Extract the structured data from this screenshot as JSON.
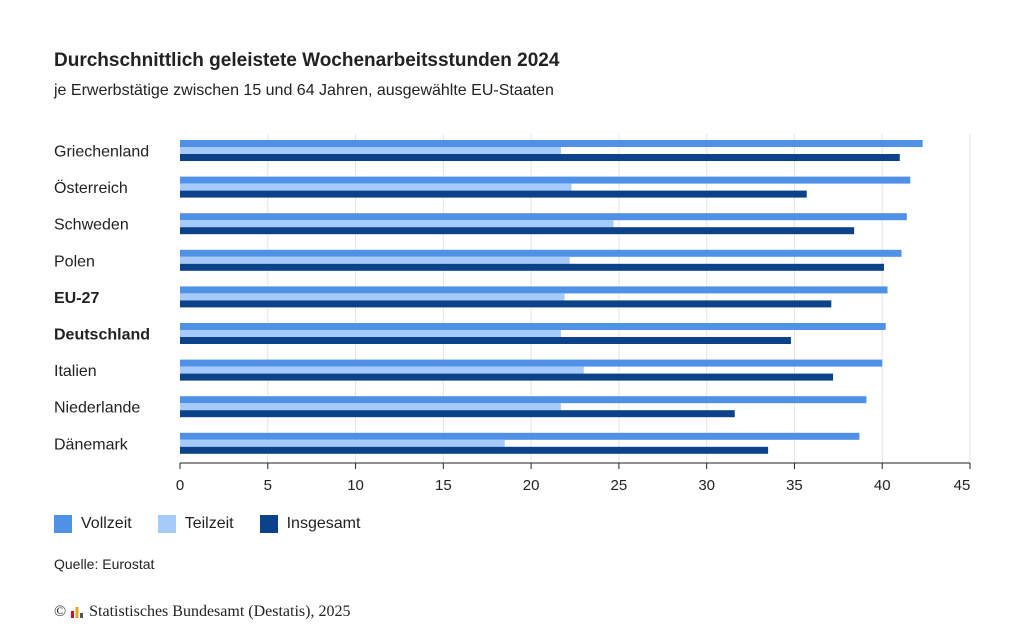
{
  "header": {
    "title": "Durchschnittlich geleistete Wochenarbeitsstunden 2024",
    "subtitle": "je Erwerbstätige zwischen 15 und 64 Jahren, ausgewählte EU-Staaten"
  },
  "chart_data": {
    "type": "bar",
    "orientation": "horizontal",
    "title": "Durchschnittlich geleistete Wochenarbeitsstunden 2024",
    "subtitle": "je Erwerbstätige zwischen 15 und 64 Jahren, ausgewählte EU-Staaten",
    "categories": [
      "Griechenland",
      "Österreich",
      "Schweden",
      "Polen",
      "EU-27",
      "Deutschland",
      "Italien",
      "Niederlande",
      "Dänemark"
    ],
    "bold_categories": [
      "EU-27",
      "Deutschland"
    ],
    "series": [
      {
        "name": "Vollzeit",
        "color": "#4f91e6",
        "values": [
          42.3,
          41.6,
          41.4,
          41.1,
          40.3,
          40.2,
          40.0,
          39.1,
          38.7
        ]
      },
      {
        "name": "Teilzeit",
        "color": "#a6cbfa",
        "values": [
          21.7,
          22.3,
          24.7,
          22.2,
          21.9,
          21.7,
          23.0,
          21.7,
          18.5
        ]
      },
      {
        "name": "Insgesamt",
        "color": "#0b4289",
        "values": [
          41.0,
          35.7,
          38.4,
          40.1,
          37.1,
          34.8,
          37.2,
          31.6,
          33.5
        ]
      }
    ],
    "xlim": [
      0,
      45
    ],
    "xticks": [
      0,
      5,
      10,
      15,
      20,
      25,
      30,
      35,
      40,
      45
    ],
    "grid": true,
    "legend_position": "bottom-left"
  },
  "footer": {
    "source": "Quelle: Eurostat",
    "copyright_symbol": "©",
    "copyright": "Statistisches Bundesamt (Destatis), 2025"
  }
}
